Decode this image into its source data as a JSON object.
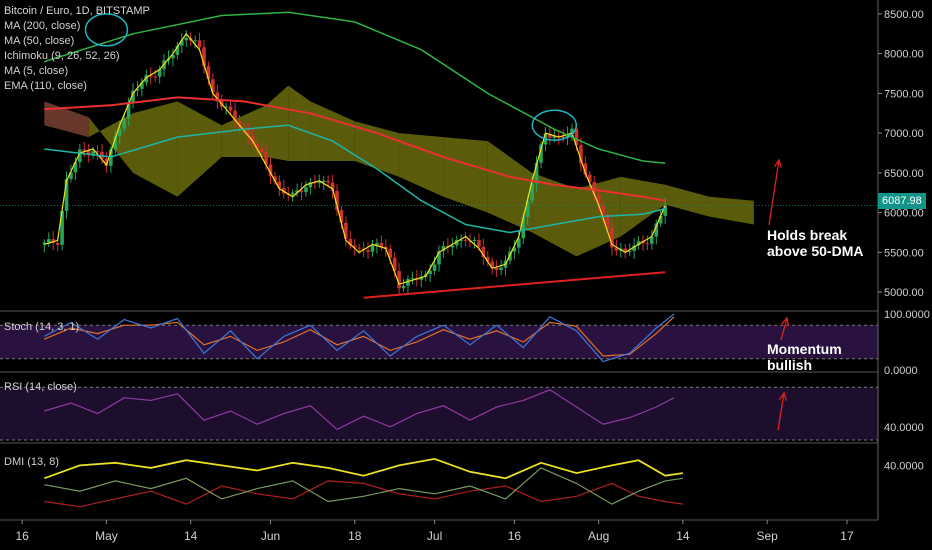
{
  "chart_data": {
    "type": "line",
    "title": "Bitcoin / Euro, 1D, BITSTAMP",
    "price_pane": {
      "legend": [
        "MA (200, close)",
        "MA (50, close)",
        "Ichimoku (9, 26, 52, 26)",
        "MA (5, close)",
        "EMA (110, close)"
      ],
      "ylim": [
        4800,
        8650
      ],
      "y_ticks": [
        "8500.00",
        "8000.00",
        "7500.00",
        "7000.00",
        "6500.00",
        "6000.00",
        "5500.00",
        "5000.00"
      ],
      "y_tick_values": [
        8500,
        8000,
        7500,
        7000,
        6500,
        6000,
        5500,
        5000
      ],
      "last_price": "6087.98",
      "x_range": [
        0,
        140
      ],
      "close": [
        {
          "x": 0,
          "y": 5600
        },
        {
          "x": 3,
          "y": 5650
        },
        {
          "x": 5,
          "y": 6400
        },
        {
          "x": 8,
          "y": 6750
        },
        {
          "x": 11,
          "y": 6800
        },
        {
          "x": 14,
          "y": 6600
        },
        {
          "x": 17,
          "y": 7100
        },
        {
          "x": 20,
          "y": 7500
        },
        {
          "x": 23,
          "y": 7700
        },
        {
          "x": 26,
          "y": 7800
        },
        {
          "x": 29,
          "y": 8000
        },
        {
          "x": 32,
          "y": 8250
        },
        {
          "x": 35,
          "y": 8050
        },
        {
          "x": 38,
          "y": 7500
        },
        {
          "x": 41,
          "y": 7300
        },
        {
          "x": 44,
          "y": 7100
        },
        {
          "x": 47,
          "y": 6900
        },
        {
          "x": 50,
          "y": 6600
        },
        {
          "x": 53,
          "y": 6300
        },
        {
          "x": 56,
          "y": 6200
        },
        {
          "x": 59,
          "y": 6350
        },
        {
          "x": 62,
          "y": 6400
        },
        {
          "x": 65,
          "y": 6300
        },
        {
          "x": 68,
          "y": 5650
        },
        {
          "x": 71,
          "y": 5500
        },
        {
          "x": 74,
          "y": 5600
        },
        {
          "x": 77,
          "y": 5550
        },
        {
          "x": 80,
          "y": 5100
        },
        {
          "x": 83,
          "y": 5150
        },
        {
          "x": 86,
          "y": 5200
        },
        {
          "x": 89,
          "y": 5500
        },
        {
          "x": 92,
          "y": 5600
        },
        {
          "x": 95,
          "y": 5700
        },
        {
          "x": 98,
          "y": 5550
        },
        {
          "x": 101,
          "y": 5300
        },
        {
          "x": 104,
          "y": 5350
        },
        {
          "x": 107,
          "y": 5700
        },
        {
          "x": 110,
          "y": 6400
        },
        {
          "x": 113,
          "y": 7000
        },
        {
          "x": 116,
          "y": 6950
        },
        {
          "x": 119,
          "y": 7000
        },
        {
          "x": 122,
          "y": 6500
        },
        {
          "x": 125,
          "y": 6100
        },
        {
          "x": 128,
          "y": 5600
        },
        {
          "x": 131,
          "y": 5500
        },
        {
          "x": 134,
          "y": 5600
        },
        {
          "x": 137,
          "y": 5700
        },
        {
          "x": 140,
          "y": 6090
        }
      ],
      "ma200": [
        {
          "x": 0,
          "y": 7900
        },
        {
          "x": 20,
          "y": 8250
        },
        {
          "x": 40,
          "y": 8480
        },
        {
          "x": 55,
          "y": 8520
        },
        {
          "x": 70,
          "y": 8400
        },
        {
          "x": 85,
          "y": 8050
        },
        {
          "x": 100,
          "y": 7500
        },
        {
          "x": 115,
          "y": 7050
        },
        {
          "x": 125,
          "y": 6800
        },
        {
          "x": 135,
          "y": 6650
        },
        {
          "x": 140,
          "y": 6620
        }
      ],
      "ma50": [
        {
          "x": 0,
          "y": 6800
        },
        {
          "x": 15,
          "y": 6700
        },
        {
          "x": 30,
          "y": 6950
        },
        {
          "x": 45,
          "y": 7050
        },
        {
          "x": 55,
          "y": 7100
        },
        {
          "x": 65,
          "y": 6900
        },
        {
          "x": 75,
          "y": 6550
        },
        {
          "x": 85,
          "y": 6150
        },
        {
          "x": 95,
          "y": 5850
        },
        {
          "x": 105,
          "y": 5750
        },
        {
          "x": 115,
          "y": 5850
        },
        {
          "x": 125,
          "y": 5950
        },
        {
          "x": 135,
          "y": 5980
        },
        {
          "x": 140,
          "y": 6050
        }
      ],
      "ema110": [
        {
          "x": 0,
          "y": 7300
        },
        {
          "x": 15,
          "y": 7350
        },
        {
          "x": 30,
          "y": 7450
        },
        {
          "x": 45,
          "y": 7400
        },
        {
          "x": 60,
          "y": 7250
        },
        {
          "x": 75,
          "y": 7000
        },
        {
          "x": 90,
          "y": 6700
        },
        {
          "x": 105,
          "y": 6450
        },
        {
          "x": 115,
          "y": 6350
        },
        {
          "x": 125,
          "y": 6280
        },
        {
          "x": 135,
          "y": 6200
        },
        {
          "x": 140,
          "y": 6150
        }
      ],
      "support_line": [
        {
          "x": 72,
          "y": 4930
        },
        {
          "x": 140,
          "y": 5250
        }
      ],
      "cloud_upper": [
        {
          "x": 0,
          "y": 7100
        },
        {
          "x": 10,
          "y": 6950
        },
        {
          "x": 20,
          "y": 7250
        },
        {
          "x": 30,
          "y": 7400
        },
        {
          "x": 40,
          "y": 7100
        },
        {
          "x": 50,
          "y": 7350
        },
        {
          "x": 55,
          "y": 7600
        },
        {
          "x": 60,
          "y": 7400
        },
        {
          "x": 70,
          "y": 7150
        },
        {
          "x": 80,
          "y": 7000
        },
        {
          "x": 90,
          "y": 6950
        },
        {
          "x": 100,
          "y": 6900
        },
        {
          "x": 110,
          "y": 6500
        },
        {
          "x": 120,
          "y": 6300
        },
        {
          "x": 130,
          "y": 6450
        },
        {
          "x": 140,
          "y": 6350
        },
        {
          "x": 150,
          "y": 6200
        },
        {
          "x": 160,
          "y": 6150
        }
      ],
      "cloud_lower": [
        {
          "x": 0,
          "y": 7400
        },
        {
          "x": 10,
          "y": 7200
        },
        {
          "x": 20,
          "y": 6500
        },
        {
          "x": 30,
          "y": 6200
        },
        {
          "x": 40,
          "y": 6700
        },
        {
          "x": 50,
          "y": 6700
        },
        {
          "x": 55,
          "y": 6650
        },
        {
          "x": 60,
          "y": 6650
        },
        {
          "x": 70,
          "y": 6650
        },
        {
          "x": 80,
          "y": 6450
        },
        {
          "x": 90,
          "y": 6200
        },
        {
          "x": 100,
          "y": 6000
        },
        {
          "x": 110,
          "y": 5750
        },
        {
          "x": 120,
          "y": 5450
        },
        {
          "x": 130,
          "y": 5700
        },
        {
          "x": 140,
          "y": 6100
        },
        {
          "x": 150,
          "y": 5950
        },
        {
          "x": 160,
          "y": 5850
        }
      ],
      "annotation": "Holds break above 50-DMA"
    },
    "stoch_pane": {
      "legend": "Stoch (14, 3, 1)",
      "ylim": [
        0,
        100
      ],
      "y_ticks": [
        "100.0000",
        "0.0000"
      ],
      "y_tick_values": [
        100,
        0
      ],
      "band": [
        20,
        80
      ],
      "k": [
        {
          "x": 0,
          "y": 60
        },
        {
          "x": 6,
          "y": 85
        },
        {
          "x": 12,
          "y": 55
        },
        {
          "x": 18,
          "y": 90
        },
        {
          "x": 24,
          "y": 75
        },
        {
          "x": 30,
          "y": 92
        },
        {
          "x": 36,
          "y": 30
        },
        {
          "x": 42,
          "y": 70
        },
        {
          "x": 48,
          "y": 20
        },
        {
          "x": 54,
          "y": 60
        },
        {
          "x": 60,
          "y": 80
        },
        {
          "x": 66,
          "y": 35
        },
        {
          "x": 72,
          "y": 70
        },
        {
          "x": 78,
          "y": 25
        },
        {
          "x": 84,
          "y": 60
        },
        {
          "x": 90,
          "y": 80
        },
        {
          "x": 96,
          "y": 45
        },
        {
          "x": 102,
          "y": 80
        },
        {
          "x": 108,
          "y": 40
        },
        {
          "x": 114,
          "y": 95
        },
        {
          "x": 120,
          "y": 70
        },
        {
          "x": 126,
          "y": 15
        },
        {
          "x": 132,
          "y": 30
        },
        {
          "x": 138,
          "y": 75
        },
        {
          "x": 142,
          "y": 100
        }
      ],
      "d": [
        {
          "x": 0,
          "y": 55
        },
        {
          "x": 6,
          "y": 75
        },
        {
          "x": 12,
          "y": 65
        },
        {
          "x": 18,
          "y": 80
        },
        {
          "x": 24,
          "y": 80
        },
        {
          "x": 30,
          "y": 85
        },
        {
          "x": 36,
          "y": 45
        },
        {
          "x": 42,
          "y": 60
        },
        {
          "x": 48,
          "y": 35
        },
        {
          "x": 54,
          "y": 50
        },
        {
          "x": 60,
          "y": 72
        },
        {
          "x": 66,
          "y": 45
        },
        {
          "x": 72,
          "y": 60
        },
        {
          "x": 78,
          "y": 35
        },
        {
          "x": 84,
          "y": 50
        },
        {
          "x": 90,
          "y": 72
        },
        {
          "x": 96,
          "y": 55
        },
        {
          "x": 102,
          "y": 70
        },
        {
          "x": 108,
          "y": 50
        },
        {
          "x": 114,
          "y": 85
        },
        {
          "x": 120,
          "y": 78
        },
        {
          "x": 126,
          "y": 25
        },
        {
          "x": 132,
          "y": 28
        },
        {
          "x": 138,
          "y": 65
        },
        {
          "x": 142,
          "y": 95
        }
      ],
      "annotation": "Momentum bullish"
    },
    "rsi_pane": {
      "legend": "RSI (14, close)",
      "ylim": [
        30,
        80
      ],
      "y_ticks": [
        "40.0000"
      ],
      "y_tick_values": [
        40
      ],
      "band": [
        30,
        70
      ],
      "rsi": [
        {
          "x": 0,
          "y": 52
        },
        {
          "x": 6,
          "y": 58
        },
        {
          "x": 12,
          "y": 50
        },
        {
          "x": 18,
          "y": 62
        },
        {
          "x": 24,
          "y": 60
        },
        {
          "x": 30,
          "y": 65
        },
        {
          "x": 36,
          "y": 45
        },
        {
          "x": 42,
          "y": 52
        },
        {
          "x": 48,
          "y": 42
        },
        {
          "x": 54,
          "y": 50
        },
        {
          "x": 60,
          "y": 56
        },
        {
          "x": 66,
          "y": 38
        },
        {
          "x": 72,
          "y": 48
        },
        {
          "x": 78,
          "y": 40
        },
        {
          "x": 84,
          "y": 50
        },
        {
          "x": 90,
          "y": 56
        },
        {
          "x": 96,
          "y": 45
        },
        {
          "x": 102,
          "y": 55
        },
        {
          "x": 108,
          "y": 60
        },
        {
          "x": 114,
          "y": 68
        },
        {
          "x": 120,
          "y": 55
        },
        {
          "x": 126,
          "y": 42
        },
        {
          "x": 132,
          "y": 47
        },
        {
          "x": 138,
          "y": 55
        },
        {
          "x": 142,
          "y": 62
        }
      ]
    },
    "dmi_pane": {
      "legend": "DMI (13, 8)",
      "ylim": [
        0,
        55
      ],
      "y_ticks": [
        "40.0000"
      ],
      "y_tick_values": [
        40
      ],
      "adx": [
        {
          "x": 0,
          "y": 30
        },
        {
          "x": 8,
          "y": 40
        },
        {
          "x": 16,
          "y": 42
        },
        {
          "x": 24,
          "y": 38
        },
        {
          "x": 32,
          "y": 44
        },
        {
          "x": 40,
          "y": 40
        },
        {
          "x": 48,
          "y": 36
        },
        {
          "x": 56,
          "y": 42
        },
        {
          "x": 64,
          "y": 38
        },
        {
          "x": 72,
          "y": 32
        },
        {
          "x": 80,
          "y": 40
        },
        {
          "x": 88,
          "y": 45
        },
        {
          "x": 96,
          "y": 35
        },
        {
          "x": 104,
          "y": 30
        },
        {
          "x": 112,
          "y": 42
        },
        {
          "x": 120,
          "y": 34
        },
        {
          "x": 128,
          "y": 40
        },
        {
          "x": 134,
          "y": 44
        },
        {
          "x": 140,
          "y": 32
        },
        {
          "x": 144,
          "y": 34
        }
      ],
      "plus_di": [
        {
          "x": 0,
          "y": 25
        },
        {
          "x": 8,
          "y": 20
        },
        {
          "x": 16,
          "y": 28
        },
        {
          "x": 24,
          "y": 22
        },
        {
          "x": 32,
          "y": 30
        },
        {
          "x": 40,
          "y": 14
        },
        {
          "x": 48,
          "y": 22
        },
        {
          "x": 56,
          "y": 28
        },
        {
          "x": 64,
          "y": 12
        },
        {
          "x": 72,
          "y": 16
        },
        {
          "x": 80,
          "y": 22
        },
        {
          "x": 88,
          "y": 18
        },
        {
          "x": 96,
          "y": 24
        },
        {
          "x": 104,
          "y": 14
        },
        {
          "x": 112,
          "y": 38
        },
        {
          "x": 120,
          "y": 26
        },
        {
          "x": 128,
          "y": 10
        },
        {
          "x": 134,
          "y": 20
        },
        {
          "x": 140,
          "y": 28
        },
        {
          "x": 144,
          "y": 30
        }
      ],
      "minus_di": [
        {
          "x": 0,
          "y": 12
        },
        {
          "x": 8,
          "y": 8
        },
        {
          "x": 16,
          "y": 14
        },
        {
          "x": 24,
          "y": 20
        },
        {
          "x": 32,
          "y": 10
        },
        {
          "x": 40,
          "y": 24
        },
        {
          "x": 48,
          "y": 18
        },
        {
          "x": 56,
          "y": 14
        },
        {
          "x": 64,
          "y": 28
        },
        {
          "x": 72,
          "y": 26
        },
        {
          "x": 80,
          "y": 18
        },
        {
          "x": 88,
          "y": 14
        },
        {
          "x": 96,
          "y": 20
        },
        {
          "x": 104,
          "y": 24
        },
        {
          "x": 112,
          "y": 12
        },
        {
          "x": 120,
          "y": 16
        },
        {
          "x": 128,
          "y": 26
        },
        {
          "x": 134,
          "y": 16
        },
        {
          "x": 140,
          "y": 12
        },
        {
          "x": 144,
          "y": 10
        }
      ]
    },
    "x_axis": {
      "ticks": [
        {
          "x": -5,
          "label": "16"
        },
        {
          "x": 14,
          "label": "May"
        },
        {
          "x": 33,
          "label": "14"
        },
        {
          "x": 51,
          "label": "Jun"
        },
        {
          "x": 70,
          "label": "18"
        },
        {
          "x": 88,
          "label": "Jul"
        },
        {
          "x": 106,
          "label": "16"
        },
        {
          "x": 125,
          "label": "Aug"
        },
        {
          "x": 144,
          "label": "14"
        },
        {
          "x": 163,
          "label": "Sep"
        },
        {
          "x": 181,
          "label": "17"
        }
      ],
      "xlim": [
        -10,
        188
      ]
    },
    "colors": {
      "ma200": "#2fb344",
      "ma50": "#1fb5a5",
      "ema110": "#e83030",
      "ma5": "#f2e11a",
      "cloud_bull": "#7a7a10",
      "cloud_bear": "#8a4a3a",
      "candle_up": "#26a65b",
      "candle_down": "#d03030",
      "stoch_k": "#3d78d8",
      "stoch_d": "#e0702a",
      "rsi": "#8e3a9e",
      "dmi_adx": "#e8e020",
      "dmi_plus": "#7a9a60",
      "dmi_minus": "#b02020"
    }
  }
}
